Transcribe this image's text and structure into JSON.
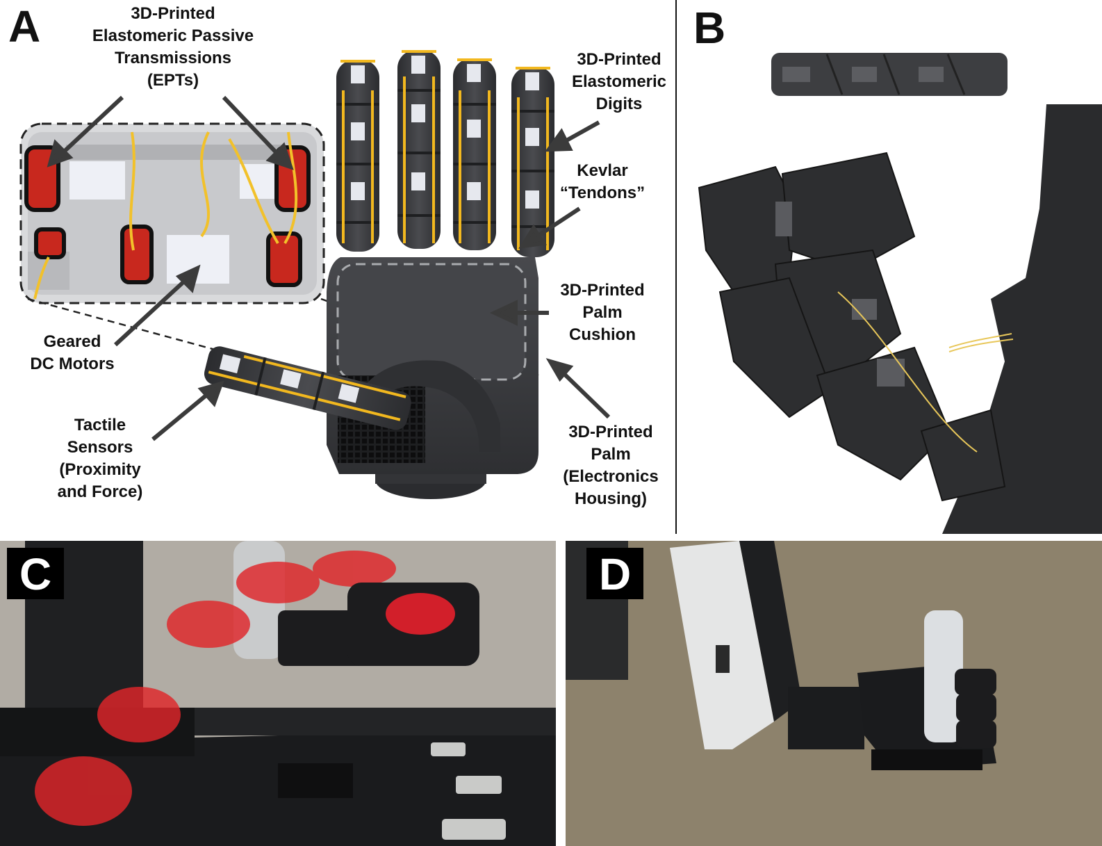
{
  "figure": {
    "panel_labels": {
      "a": "A",
      "b": "B",
      "c": "C",
      "d": "D"
    },
    "annotations": {
      "epts": [
        "3D-Printed",
        "Elastomeric Passive",
        "Transmissions",
        "(EPTs)"
      ],
      "digits": [
        "3D-Printed",
        "Elastomeric",
        "Digits"
      ],
      "tendons": [
        "Kevlar",
        "“Tendons”"
      ],
      "cushion": [
        "3D-Printed",
        "Palm",
        "Cushion"
      ],
      "motors": [
        "Geared",
        "DC Motors"
      ],
      "sensors": [
        "Tactile",
        "Sensors",
        "(Proximity",
        "and Force)"
      ],
      "palm": [
        "3D-Printed",
        "Palm",
        "(Electronics",
        "Housing)"
      ]
    },
    "colors": {
      "hand_body": "#3a3b3e",
      "tendon": "#f2b81f",
      "sensor_pad": "#e6e8ee",
      "ept_red": "#c8281e",
      "motion_blur_red": "#e0262a"
    }
  }
}
